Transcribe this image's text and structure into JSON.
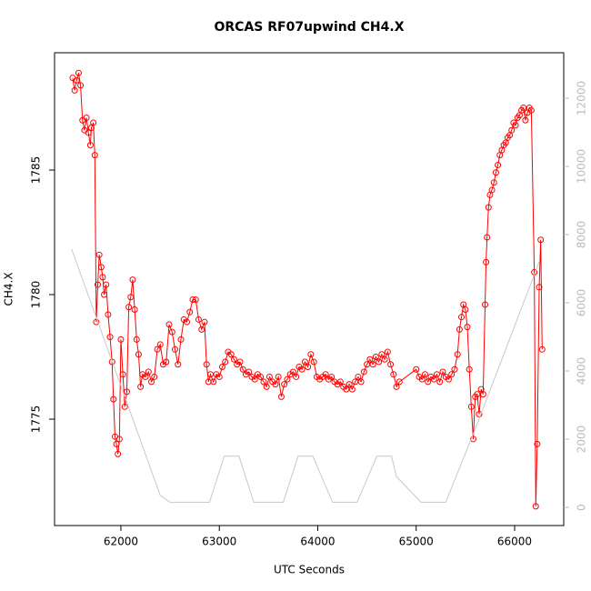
{
  "chart_data": {
    "type": "line",
    "title": "ORCAS RF07upwind CH4.X",
    "x_label": "UTC Seconds",
    "y_label": "CH4.X",
    "xlim": [
      61326,
      66499
    ],
    "ylim": [
      1770.73,
      1789.71
    ],
    "y2lim": [
      -533,
      13333
    ],
    "xticks": [
      62000,
      63000,
      64000,
      65000,
      66000
    ],
    "yticks": [
      1775,
      1780,
      1785
    ],
    "y2ticks": [
      0,
      2000,
      4000,
      6000,
      8000,
      10000,
      12000
    ],
    "series": [
      {
        "color": "#ff0000",
        "markers": true,
        "x": [
          61510,
          61530,
          61550,
          61570,
          61590,
          61610,
          61630,
          61650,
          61670,
          61690,
          61700,
          61720,
          61735,
          61750,
          61765,
          61780,
          61800,
          61815,
          61830,
          61850,
          61870,
          61890,
          61910,
          61925,
          61940,
          61955,
          61970,
          61985,
          62000,
          62020,
          62040,
          62060,
          62080,
          62100,
          62120,
          62140,
          62160,
          62180,
          62200,
          62220,
          62250,
          62280,
          62310,
          62340,
          62370,
          62400,
          62430,
          62460,
          62490,
          62520,
          62550,
          62580,
          62610,
          62640,
          62670,
          62700,
          62730,
          62760,
          62790,
          62820,
          62850,
          62870,
          62890,
          62910,
          62940,
          62970,
          63000,
          63030,
          63060,
          63090,
          63120,
          63150,
          63180,
          63210,
          63240,
          63270,
          63300,
          63330,
          63360,
          63390,
          63420,
          63450,
          63480,
          63510,
          63540,
          63570,
          63600,
          63630,
          63660,
          63690,
          63720,
          63750,
          63780,
          63810,
          63840,
          63870,
          63900,
          63930,
          63960,
          63990,
          64020,
          64050,
          64080,
          64110,
          64140,
          64170,
          64200,
          64230,
          64260,
          64290,
          64320,
          64350,
          64380,
          64410,
          64440,
          64470,
          64500,
          64530,
          64560,
          64590,
          64620,
          64650,
          64680,
          64710,
          64740,
          64770,
          64800,
          64830,
          65000,
          65030,
          65060,
          65090,
          65120,
          65150,
          65180,
          65210,
          65240,
          65270,
          65300,
          65330,
          65360,
          65390,
          65420,
          65440,
          65460,
          65480,
          65500,
          65520,
          65540,
          65560,
          65580,
          65600,
          65620,
          65640,
          65660,
          65680,
          65700,
          65710,
          65720,
          65735,
          65750,
          65770,
          65790,
          65810,
          65830,
          65850,
          65870,
          65890,
          65910,
          65930,
          65950,
          65970,
          65990,
          66010,
          66030,
          66050,
          66070,
          66090,
          66110,
          66130,
          66150,
          66170,
          66200,
          66215,
          66230,
          66250,
          66265,
          66280
        ],
        "values": [
          1788.7,
          1788.2,
          1788.6,
          1788.9,
          1788.4,
          1787.0,
          1786.6,
          1787.1,
          1786.5,
          1786.0,
          1786.7,
          1786.9,
          1785.6,
          1778.9,
          1780.4,
          1781.6,
          1781.1,
          1780.7,
          1780.0,
          1780.4,
          1779.2,
          1778.3,
          1777.3,
          1775.8,
          1774.3,
          1774.0,
          1773.6,
          1774.2,
          1778.2,
          1776.8,
          1775.5,
          1776.1,
          1779.5,
          1779.9,
          1780.6,
          1779.4,
          1778.2,
          1777.6,
          1776.3,
          1776.8,
          1776.7,
          1776.9,
          1776.5,
          1776.7,
          1777.8,
          1778.0,
          1777.2,
          1777.3,
          1778.8,
          1778.5,
          1777.8,
          1777.2,
          1778.2,
          1779.0,
          1778.9,
          1779.3,
          1779.8,
          1779.8,
          1779.0,
          1778.6,
          1778.9,
          1777.2,
          1776.5,
          1776.8,
          1776.5,
          1776.8,
          1776.7,
          1777.1,
          1777.3,
          1777.7,
          1777.6,
          1777.4,
          1777.2,
          1777.3,
          1777.0,
          1776.8,
          1776.9,
          1776.7,
          1776.6,
          1776.8,
          1776.7,
          1776.5,
          1776.3,
          1776.7,
          1776.5,
          1776.4,
          1776.7,
          1775.9,
          1776.4,
          1776.6,
          1776.8,
          1776.9,
          1776.7,
          1777.1,
          1777.0,
          1777.3,
          1777.1,
          1777.6,
          1777.3,
          1776.7,
          1776.6,
          1776.7,
          1776.8,
          1776.6,
          1776.7,
          1776.5,
          1776.4,
          1776.5,
          1776.3,
          1776.2,
          1776.4,
          1776.2,
          1776.5,
          1776.7,
          1776.5,
          1776.9,
          1777.2,
          1777.4,
          1777.2,
          1777.5,
          1777.3,
          1777.6,
          1777.4,
          1777.7,
          1777.2,
          1776.8,
          1776.3,
          1776.5,
          1777.0,
          1776.7,
          1776.6,
          1776.8,
          1776.5,
          1776.7,
          1776.6,
          1776.8,
          1776.5,
          1776.9,
          1776.7,
          1776.6,
          1776.8,
          1777.0,
          1777.6,
          1778.6,
          1779.1,
          1779.6,
          1779.4,
          1778.7,
          1777.0,
          1775.5,
          1774.2,
          1775.9,
          1776.0,
          1775.2,
          1776.2,
          1776.0,
          1779.6,
          1781.3,
          1782.3,
          1783.5,
          1784.0,
          1784.2,
          1784.5,
          1784.9,
          1785.2,
          1785.6,
          1785.8,
          1786.0,
          1786.1,
          1786.3,
          1786.4,
          1786.6,
          1786.9,
          1786.8,
          1787.1,
          1787.2,
          1787.4,
          1787.5,
          1787.0,
          1787.3,
          1787.5,
          1787.4,
          1780.9,
          1771.5,
          1774.0,
          1780.3,
          1782.2,
          1777.8
        ]
      },
      {
        "color": "#c8c8c8",
        "axis": "y2",
        "markers": false,
        "x": [
          61500,
          62400,
          62500,
          62900,
          63050,
          63200,
          63350,
          63650,
          63800,
          63950,
          64150,
          64400,
          64600,
          64750,
          64800,
          65050,
          65300,
          65600,
          66250
        ],
        "values": [
          7573,
          350,
          150,
          150,
          1500,
          1500,
          150,
          150,
          1500,
          1500,
          150,
          150,
          1500,
          1500,
          900,
          150,
          150,
          2300,
          7200
        ]
      }
    ]
  }
}
